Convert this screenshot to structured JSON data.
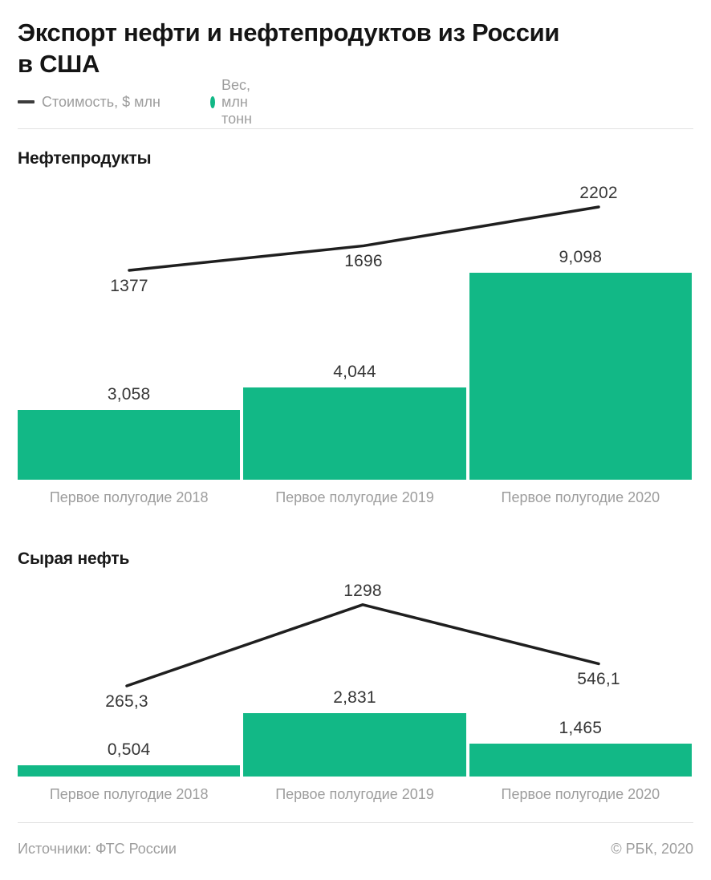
{
  "title": {
    "line1": "Экспорт нефти и нефтепродуктов из России",
    "line2": "в США"
  },
  "legend": {
    "value_label": "Стоимость, $ млн",
    "weight_label": "Вес, млн тонн"
  },
  "colors": {
    "green": "#12b886",
    "line": "#1f1f1f",
    "title_text": "#141414",
    "value_text": "#363636",
    "muted_text": "#9d9d9d",
    "divider": "#e2e2e2",
    "legend_dash": "#3c3c3c"
  },
  "footer": {
    "sources": "Источники: ФТС России",
    "copyright": "© РБК, 2020"
  },
  "chart_data": [
    {
      "type": "bar",
      "combo": "bar+line",
      "title": "Нефтепродукты",
      "categories": [
        "Первое полугодие 2018",
        "Первое полугодие 2019",
        "Первое полугодие 2020"
      ],
      "series": [
        {
          "name": "Стоимость, $ млн",
          "type": "line",
          "unit": "$ млн",
          "values": [
            1377,
            1696,
            2202
          ],
          "value_labels": [
            "1377",
            "1696",
            "2202"
          ],
          "label_side": [
            "below",
            "below",
            "above"
          ]
        },
        {
          "name": "Вес, млн тонн",
          "type": "bar",
          "unit": "млн тонн",
          "values": [
            3.058,
            4.044,
            9.098
          ],
          "value_labels": [
            "3,058",
            "4,044",
            "9,098"
          ]
        }
      ],
      "grid": false,
      "legend_position": "top"
    },
    {
      "type": "bar",
      "combo": "bar+line",
      "title": "Сырая нефть",
      "categories": [
        "Первое полугодие 2018",
        "Первое полугодие 2019",
        "Первое полугодие 2020"
      ],
      "series": [
        {
          "name": "Стоимость, $ млн",
          "type": "line",
          "unit": "$ млн",
          "values": [
            265.3,
            1298,
            546.1
          ],
          "value_labels": [
            "265,3",
            "1298",
            "546,1"
          ],
          "label_side": [
            "below",
            "above",
            "below"
          ]
        },
        {
          "name": "Вес, млн тонн",
          "type": "bar",
          "unit": "млн тонн",
          "values": [
            0.504,
            2.831,
            1.465
          ],
          "value_labels": [
            "0,504",
            "2,831",
            "1,465"
          ]
        }
      ],
      "grid": false,
      "legend_position": "top"
    }
  ]
}
